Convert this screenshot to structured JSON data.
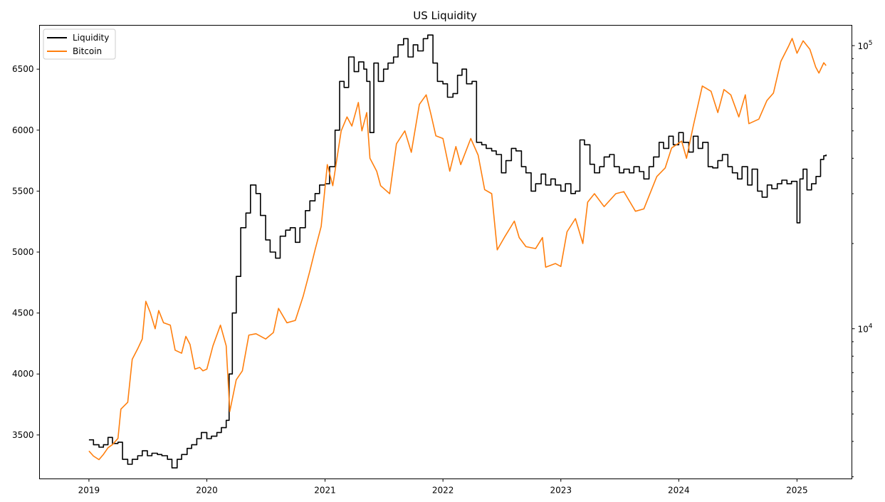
{
  "chart_data": {
    "type": "line",
    "title": "US Liquidity",
    "xlabel": "",
    "ylabel": "",
    "grid": false,
    "legend_position": "top-left",
    "xlim": [
      "2018-08-01",
      "2025-06-20"
    ],
    "x_ticks": [
      "2019",
      "2020",
      "2021",
      "2022",
      "2023",
      "2024",
      "2025"
    ],
    "y_left": {
      "scale": "linear",
      "range": [
        3140,
        6860
      ],
      "ticks": [
        3500,
        4000,
        4500,
        5000,
        5500,
        6000,
        6500
      ]
    },
    "y_right": {
      "scale": "log",
      "range": [
        2950,
        118000
      ],
      "ticks": [
        {
          "value": 10000,
          "base": "10",
          "exp": "4"
        },
        {
          "value": 100000,
          "base": "10",
          "exp": "5"
        }
      ]
    },
    "series": [
      {
        "name": "Liquidity",
        "color": "#000000",
        "axis": "left",
        "step": true,
        "points": [
          [
            "2019-01-01",
            3460
          ],
          [
            "2019-01-15",
            3420
          ],
          [
            "2019-02-01",
            3400
          ],
          [
            "2019-02-15",
            3420
          ],
          [
            "2019-03-01",
            3480
          ],
          [
            "2019-03-15",
            3430
          ],
          [
            "2019-04-01",
            3440
          ],
          [
            "2019-04-15",
            3300
          ],
          [
            "2019-05-01",
            3260
          ],
          [
            "2019-05-15",
            3300
          ],
          [
            "2019-06-01",
            3330
          ],
          [
            "2019-06-15",
            3370
          ],
          [
            "2019-07-01",
            3330
          ],
          [
            "2019-07-15",
            3350
          ],
          [
            "2019-08-01",
            3340
          ],
          [
            "2019-08-15",
            3330
          ],
          [
            "2019-09-01",
            3300
          ],
          [
            "2019-09-15",
            3230
          ],
          [
            "2019-10-01",
            3300
          ],
          [
            "2019-10-15",
            3340
          ],
          [
            "2019-11-01",
            3390
          ],
          [
            "2019-11-15",
            3420
          ],
          [
            "2019-12-01",
            3470
          ],
          [
            "2019-12-15",
            3520
          ],
          [
            "2020-01-01",
            3470
          ],
          [
            "2020-01-15",
            3490
          ],
          [
            "2020-02-01",
            3520
          ],
          [
            "2020-02-15",
            3560
          ],
          [
            "2020-03-01",
            3620
          ],
          [
            "2020-03-10",
            4000
          ],
          [
            "2020-03-20",
            4500
          ],
          [
            "2020-04-01",
            4800
          ],
          [
            "2020-04-15",
            5200
          ],
          [
            "2020-05-01",
            5320
          ],
          [
            "2020-05-15",
            5550
          ],
          [
            "2020-06-01",
            5480
          ],
          [
            "2020-06-15",
            5300
          ],
          [
            "2020-07-01",
            5100
          ],
          [
            "2020-07-15",
            5000
          ],
          [
            "2020-08-01",
            4950
          ],
          [
            "2020-08-15",
            5130
          ],
          [
            "2020-09-01",
            5180
          ],
          [
            "2020-09-15",
            5200
          ],
          [
            "2020-10-01",
            5080
          ],
          [
            "2020-10-15",
            5200
          ],
          [
            "2020-11-01",
            5340
          ],
          [
            "2020-11-15",
            5420
          ],
          [
            "2020-12-01",
            5480
          ],
          [
            "2020-12-15",
            5550
          ],
          [
            "2021-01-01",
            5560
          ],
          [
            "2021-01-15",
            5700
          ],
          [
            "2021-02-01",
            6000
          ],
          [
            "2021-02-15",
            6400
          ],
          [
            "2021-03-01",
            6350
          ],
          [
            "2021-03-15",
            6600
          ],
          [
            "2021-04-01",
            6480
          ],
          [
            "2021-04-15",
            6560
          ],
          [
            "2021-05-01",
            6500
          ],
          [
            "2021-05-10",
            6400
          ],
          [
            "2021-05-20",
            5980
          ],
          [
            "2021-06-01",
            6550
          ],
          [
            "2021-06-15",
            6400
          ],
          [
            "2021-07-01",
            6500
          ],
          [
            "2021-07-15",
            6550
          ],
          [
            "2021-08-01",
            6600
          ],
          [
            "2021-08-15",
            6700
          ],
          [
            "2021-09-01",
            6750
          ],
          [
            "2021-09-15",
            6600
          ],
          [
            "2021-10-01",
            6700
          ],
          [
            "2021-10-15",
            6650
          ],
          [
            "2021-11-01",
            6750
          ],
          [
            "2021-11-15",
            6780
          ],
          [
            "2021-12-01",
            6550
          ],
          [
            "2021-12-15",
            6400
          ],
          [
            "2022-01-01",
            6380
          ],
          [
            "2022-01-15",
            6270
          ],
          [
            "2022-02-01",
            6300
          ],
          [
            "2022-02-15",
            6450
          ],
          [
            "2022-03-01",
            6500
          ],
          [
            "2022-03-15",
            6380
          ],
          [
            "2022-04-01",
            6400
          ],
          [
            "2022-04-15",
            5900
          ],
          [
            "2022-05-01",
            5880
          ],
          [
            "2022-05-15",
            5850
          ],
          [
            "2022-06-01",
            5830
          ],
          [
            "2022-06-15",
            5800
          ],
          [
            "2022-07-01",
            5650
          ],
          [
            "2022-07-15",
            5750
          ],
          [
            "2022-08-01",
            5850
          ],
          [
            "2022-08-15",
            5830
          ],
          [
            "2022-09-01",
            5700
          ],
          [
            "2022-09-15",
            5650
          ],
          [
            "2022-10-01",
            5500
          ],
          [
            "2022-10-15",
            5560
          ],
          [
            "2022-11-01",
            5640
          ],
          [
            "2022-11-15",
            5550
          ],
          [
            "2022-12-01",
            5600
          ],
          [
            "2022-12-15",
            5550
          ],
          [
            "2023-01-01",
            5500
          ],
          [
            "2023-01-15",
            5560
          ],
          [
            "2023-02-01",
            5480
          ],
          [
            "2023-02-15",
            5500
          ],
          [
            "2023-03-01",
            5920
          ],
          [
            "2023-03-15",
            5880
          ],
          [
            "2023-04-01",
            5720
          ],
          [
            "2023-04-15",
            5650
          ],
          [
            "2023-05-01",
            5700
          ],
          [
            "2023-05-15",
            5780
          ],
          [
            "2023-06-01",
            5800
          ],
          [
            "2023-06-15",
            5700
          ],
          [
            "2023-07-01",
            5650
          ],
          [
            "2023-07-15",
            5680
          ],
          [
            "2023-08-01",
            5650
          ],
          [
            "2023-08-15",
            5700
          ],
          [
            "2023-09-01",
            5660
          ],
          [
            "2023-09-15",
            5600
          ],
          [
            "2023-10-01",
            5700
          ],
          [
            "2023-10-15",
            5780
          ],
          [
            "2023-11-01",
            5900
          ],
          [
            "2023-11-15",
            5850
          ],
          [
            "2023-12-01",
            5950
          ],
          [
            "2023-12-15",
            5880
          ],
          [
            "2024-01-01",
            5980
          ],
          [
            "2024-01-15",
            5900
          ],
          [
            "2024-02-01",
            5820
          ],
          [
            "2024-02-15",
            5950
          ],
          [
            "2024-03-01",
            5850
          ],
          [
            "2024-03-15",
            5900
          ],
          [
            "2024-04-01",
            5700
          ],
          [
            "2024-04-15",
            5690
          ],
          [
            "2024-05-01",
            5750
          ],
          [
            "2024-05-15",
            5800
          ],
          [
            "2024-06-01",
            5700
          ],
          [
            "2024-06-15",
            5650
          ],
          [
            "2024-07-01",
            5600
          ],
          [
            "2024-07-15",
            5700
          ],
          [
            "2024-08-01",
            5550
          ],
          [
            "2024-08-15",
            5680
          ],
          [
            "2024-09-01",
            5500
          ],
          [
            "2024-09-15",
            5450
          ],
          [
            "2024-10-01",
            5550
          ],
          [
            "2024-10-15",
            5520
          ],
          [
            "2024-11-01",
            5560
          ],
          [
            "2024-11-15",
            5590
          ],
          [
            "2024-12-01",
            5560
          ],
          [
            "2024-12-15",
            5580
          ],
          [
            "2025-01-01",
            5240
          ],
          [
            "2025-01-10",
            5600
          ],
          [
            "2025-01-20",
            5680
          ],
          [
            "2025-02-01",
            5510
          ],
          [
            "2025-02-15",
            5560
          ],
          [
            "2025-03-01",
            5620
          ],
          [
            "2025-03-15",
            5760
          ],
          [
            "2025-03-25",
            5790
          ],
          [
            "2025-04-01",
            5800
          ]
        ]
      },
      {
        "name": "Bitcoin",
        "color": "#ff7f0e",
        "axis": "right",
        "step": false,
        "points": [
          [
            "2019-01-01",
            3700
          ],
          [
            "2019-01-15",
            3550
          ],
          [
            "2019-02-01",
            3450
          ],
          [
            "2019-02-15",
            3600
          ],
          [
            "2019-03-01",
            3800
          ],
          [
            "2019-03-15",
            3900
          ],
          [
            "2019-04-01",
            4100
          ],
          [
            "2019-04-10",
            5200
          ],
          [
            "2019-05-01",
            5500
          ],
          [
            "2019-05-15",
            7800
          ],
          [
            "2019-06-01",
            8500
          ],
          [
            "2019-06-15",
            9200
          ],
          [
            "2019-06-26",
            12500
          ],
          [
            "2019-07-10",
            11400
          ],
          [
            "2019-07-25",
            10000
          ],
          [
            "2019-08-05",
            11600
          ],
          [
            "2019-08-20",
            10500
          ],
          [
            "2019-09-10",
            10300
          ],
          [
            "2019-09-25",
            8400
          ],
          [
            "2019-10-15",
            8200
          ],
          [
            "2019-10-28",
            9400
          ],
          [
            "2019-11-10",
            8800
          ],
          [
            "2019-11-25",
            7200
          ],
          [
            "2019-12-10",
            7300
          ],
          [
            "2019-12-20",
            7100
          ],
          [
            "2020-01-01",
            7200
          ],
          [
            "2020-01-20",
            8700
          ],
          [
            "2020-02-12",
            10300
          ],
          [
            "2020-03-01",
            8700
          ],
          [
            "2020-03-12",
            5100
          ],
          [
            "2020-04-01",
            6600
          ],
          [
            "2020-04-20",
            7100
          ],
          [
            "2020-05-10",
            9500
          ],
          [
            "2020-06-01",
            9600
          ],
          [
            "2020-07-01",
            9200
          ],
          [
            "2020-07-25",
            9700
          ],
          [
            "2020-08-10",
            11800
          ],
          [
            "2020-09-05",
            10500
          ],
          [
            "2020-10-01",
            10700
          ],
          [
            "2020-10-25",
            13000
          ],
          [
            "2020-11-15",
            16000
          ],
          [
            "2020-12-01",
            19000
          ],
          [
            "2020-12-20",
            23000
          ],
          [
            "2021-01-08",
            38000
          ],
          [
            "2021-01-25",
            32000
          ],
          [
            "2021-02-20",
            50000
          ],
          [
            "2021-03-10",
            56000
          ],
          [
            "2021-03-25",
            52000
          ],
          [
            "2021-04-14",
            63000
          ],
          [
            "2021-04-25",
            50000
          ],
          [
            "2021-05-10",
            58000
          ],
          [
            "2021-05-20",
            40000
          ],
          [
            "2021-06-10",
            36000
          ],
          [
            "2021-06-22",
            32000
          ],
          [
            "2021-07-20",
            30000
          ],
          [
            "2021-08-10",
            45000
          ],
          [
            "2021-09-05",
            50000
          ],
          [
            "2021-09-25",
            42000
          ],
          [
            "2021-10-20",
            62000
          ],
          [
            "2021-11-10",
            67000
          ],
          [
            "2021-11-25",
            57000
          ],
          [
            "2021-12-10",
            48000
          ],
          [
            "2022-01-01",
            47000
          ],
          [
            "2022-01-22",
            36000
          ],
          [
            "2022-02-10",
            44000
          ],
          [
            "2022-02-25",
            38000
          ],
          [
            "2022-03-28",
            47000
          ],
          [
            "2022-04-20",
            41000
          ],
          [
            "2022-05-10",
            31000
          ],
          [
            "2022-06-01",
            30000
          ],
          [
            "2022-06-18",
            19000
          ],
          [
            "2022-07-10",
            21000
          ],
          [
            "2022-08-10",
            24000
          ],
          [
            "2022-08-25",
            21000
          ],
          [
            "2022-09-15",
            19500
          ],
          [
            "2022-10-15",
            19200
          ],
          [
            "2022-11-05",
            21000
          ],
          [
            "2022-11-15",
            16500
          ],
          [
            "2022-12-15",
            17000
          ],
          [
            "2023-01-01",
            16600
          ],
          [
            "2023-01-20",
            22000
          ],
          [
            "2023-02-15",
            24500
          ],
          [
            "2023-03-10",
            20000
          ],
          [
            "2023-03-25",
            28000
          ],
          [
            "2023-04-15",
            30000
          ],
          [
            "2023-05-15",
            27000
          ],
          [
            "2023-06-20",
            30000
          ],
          [
            "2023-07-15",
            30500
          ],
          [
            "2023-08-20",
            26000
          ],
          [
            "2023-09-15",
            26500
          ],
          [
            "2023-10-25",
            34500
          ],
          [
            "2023-11-20",
            37000
          ],
          [
            "2023-12-10",
            43500
          ],
          [
            "2024-01-10",
            46000
          ],
          [
            "2024-01-25",
            40000
          ],
          [
            "2024-02-15",
            52000
          ],
          [
            "2024-03-14",
            72000
          ],
          [
            "2024-04-10",
            69000
          ],
          [
            "2024-05-01",
            58000
          ],
          [
            "2024-05-20",
            70000
          ],
          [
            "2024-06-10",
            67000
          ],
          [
            "2024-07-05",
            56000
          ],
          [
            "2024-07-25",
            67000
          ],
          [
            "2024-08-05",
            53000
          ],
          [
            "2024-09-05",
            55000
          ],
          [
            "2024-09-30",
            64000
          ],
          [
            "2024-10-20",
            68000
          ],
          [
            "2024-11-12",
            88000
          ],
          [
            "2024-12-05",
            99000
          ],
          [
            "2024-12-17",
            106000
          ],
          [
            "2025-01-01",
            94000
          ],
          [
            "2025-01-20",
            104000
          ],
          [
            "2025-02-10",
            97000
          ],
          [
            "2025-02-28",
            84000
          ],
          [
            "2025-03-10",
            80000
          ],
          [
            "2025-03-25",
            87000
          ],
          [
            "2025-04-01",
            85000
          ]
        ]
      }
    ]
  }
}
